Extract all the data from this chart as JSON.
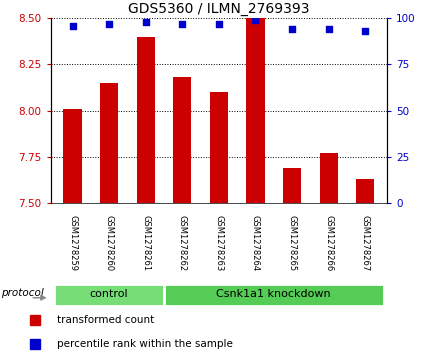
{
  "title": "GDS5360 / ILMN_2769393",
  "samples": [
    "GSM1278259",
    "GSM1278260",
    "GSM1278261",
    "GSM1278262",
    "GSM1278263",
    "GSM1278264",
    "GSM1278265",
    "GSM1278266",
    "GSM1278267"
  ],
  "bar_values": [
    8.01,
    8.15,
    8.4,
    8.18,
    8.1,
    8.5,
    7.69,
    7.77,
    7.63
  ],
  "percentile_values": [
    96,
    97,
    98,
    97,
    97,
    99,
    94,
    94,
    93
  ],
  "bar_color": "#cc0000",
  "dot_color": "#0000cc",
  "ylim_left": [
    7.5,
    8.5
  ],
  "ylim_right": [
    0,
    100
  ],
  "yticks_left": [
    7.5,
    7.75,
    8.0,
    8.25,
    8.5
  ],
  "yticks_right": [
    0,
    25,
    50,
    75,
    100
  ],
  "groups": [
    {
      "label": "control",
      "start": 0,
      "end": 2,
      "color": "#77dd77"
    },
    {
      "label": "Csnk1a1 knockdown",
      "start": 3,
      "end": 8,
      "color": "#55cc55"
    }
  ],
  "protocol_label": "protocol",
  "legend_items": [
    {
      "label": "transformed count",
      "color": "#cc0000"
    },
    {
      "label": "percentile rank within the sample",
      "color": "#0000cc"
    }
  ],
  "title_fontsize": 10,
  "tick_fontsize": 7.5,
  "label_fontsize": 8,
  "sample_box_color": "#d0d0d0",
  "plot_bg_color": "#ffffff",
  "bar_width": 0.5
}
